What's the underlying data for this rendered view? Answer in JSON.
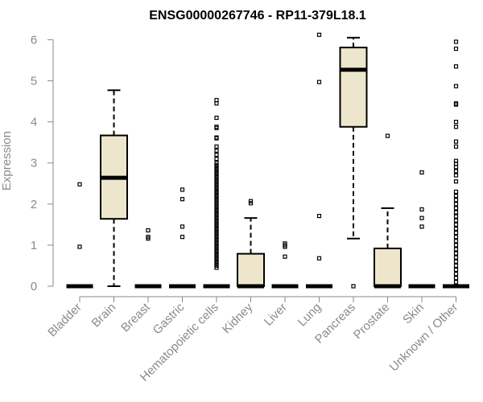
{
  "chart_data": {
    "type": "boxplot",
    "title": "ENSG00000267746 - RP11-379L18.1",
    "xlabel": "",
    "ylabel": "Expression",
    "ylim": [
      0,
      6.1
    ],
    "yticks": [
      0,
      1,
      2,
      3,
      4,
      5,
      6
    ],
    "box_fill": "#ede6cc",
    "categories": [
      "Bladder",
      "Brain",
      "Breast",
      "Gastric",
      "Hematopoietic cells",
      "Kidney",
      "Liver",
      "Lung",
      "Pancreas",
      "Prostate",
      "Skin",
      "Unknown / Other"
    ],
    "boxes": [
      {
        "category": "Bladder",
        "q1": 0,
        "median": 0,
        "q3": 0,
        "whisker_low": 0,
        "whisker_high": 0,
        "outliers": [
          2.48,
          0.96
        ]
      },
      {
        "category": "Brain",
        "q1": 1.64,
        "median": 2.64,
        "q3": 3.67,
        "whisker_low": 0,
        "whisker_high": 4.77,
        "outliers": []
      },
      {
        "category": "Breast",
        "q1": 0,
        "median": 0,
        "q3": 0,
        "whisker_low": 0,
        "whisker_high": 0,
        "outliers": [
          1.36,
          1.2,
          1.16
        ]
      },
      {
        "category": "Gastric",
        "q1": 0,
        "median": 0,
        "q3": 0,
        "whisker_low": 0,
        "whisker_high": 0,
        "outliers": [
          2.35,
          2.12,
          1.45,
          1.2
        ]
      },
      {
        "category": "Hematopoietic cells",
        "q1": 0,
        "median": 0,
        "q3": 0,
        "whisker_low": 0,
        "whisker_high": 0,
        "outliers": [
          4.53,
          4.45,
          4.1,
          3.88,
          3.85,
          3.62,
          3.6,
          3.4,
          3.3,
          3.2,
          3.1,
          3.0,
          2.95,
          2.9,
          2.85,
          2.8,
          2.75,
          2.7,
          2.65,
          2.6,
          2.55,
          2.5,
          2.45,
          2.4,
          2.35,
          2.3,
          2.25,
          2.2,
          2.15,
          2.1,
          2.05,
          2.0,
          1.95,
          1.9,
          1.85,
          1.8,
          1.75,
          1.7,
          1.65,
          1.6,
          1.55,
          1.5,
          1.45,
          1.4,
          1.35,
          1.3,
          1.25,
          1.2,
          1.15,
          1.1,
          1.05,
          1.0,
          0.95,
          0.9,
          0.85,
          0.8,
          0.75,
          0.7,
          0.65,
          0.6,
          0.55,
          0.5,
          0.45
        ]
      },
      {
        "category": "Kidney",
        "q1": 0,
        "median": 0,
        "q3": 0.79,
        "whisker_low": 0,
        "whisker_high": 1.66,
        "outliers": [
          2.07,
          2.02
        ]
      },
      {
        "category": "Liver",
        "q1": 0,
        "median": 0,
        "q3": 0,
        "whisker_low": 0,
        "whisker_high": 0,
        "outliers": [
          1.04,
          1.0,
          0.96,
          0.72
        ]
      },
      {
        "category": "Lung",
        "q1": 0,
        "median": 0,
        "q3": 0,
        "whisker_low": 0,
        "whisker_high": 0,
        "outliers": [
          6.12,
          4.97,
          1.71,
          0.68
        ]
      },
      {
        "category": "Pancreas",
        "q1": 3.88,
        "median": 5.27,
        "q3": 5.81,
        "whisker_low": 1.16,
        "whisker_high": 6.05,
        "outliers": [
          0
        ]
      },
      {
        "category": "Prostate",
        "q1": 0,
        "median": 0,
        "q3": 0.92,
        "whisker_low": 0,
        "whisker_high": 1.9,
        "outliers": [
          3.66
        ]
      },
      {
        "category": "Skin",
        "q1": 0,
        "median": 0,
        "q3": 0,
        "whisker_low": 0,
        "whisker_high": 0,
        "outliers": [
          2.77,
          1.87,
          1.66,
          1.45
        ]
      },
      {
        "category": "Unknown / Other",
        "q1": 0,
        "median": 0,
        "q3": 0,
        "whisker_low": 0,
        "whisker_high": 0,
        "outliers": [
          5.95,
          5.78,
          5.35,
          4.87,
          4.45,
          4.42,
          4.0,
          3.88,
          3.52,
          3.4,
          3.05,
          2.98,
          2.9,
          2.8,
          2.7,
          2.55,
          2.3,
          2.2,
          2.1,
          2.0,
          1.9,
          1.8,
          1.7,
          1.6,
          1.5,
          1.4,
          1.3,
          1.2,
          1.1,
          1.0,
          0.9,
          0.8,
          0.7,
          0.6,
          0.5,
          0.4,
          0.3,
          0.2,
          0.1
        ]
      }
    ]
  }
}
